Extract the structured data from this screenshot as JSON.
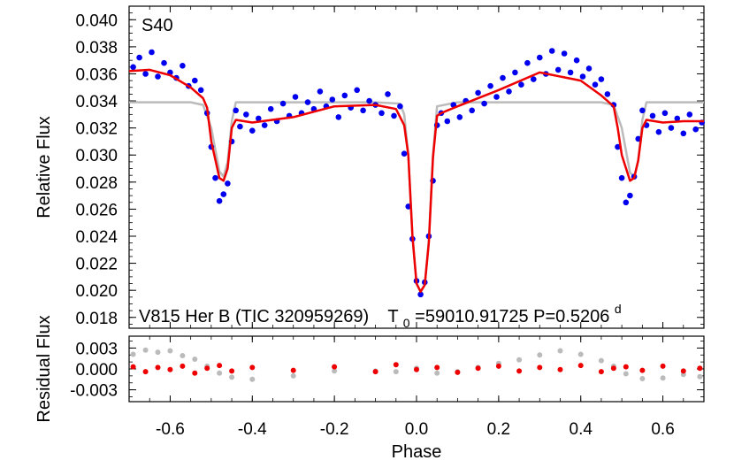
{
  "chart_data": [
    {
      "type": "scatter",
      "panel": "main",
      "title": "",
      "xlabel": "",
      "ylabel": "Relative Flux",
      "xlim": [
        -0.7,
        0.7
      ],
      "ylim": [
        0.0172,
        0.041
      ],
      "x_ticks": [
        -0.6,
        -0.4,
        -0.2,
        0.0,
        0.2,
        0.4,
        0.6
      ],
      "y_ticks": [
        0.018,
        0.02,
        0.022,
        0.024,
        0.026,
        0.028,
        0.03,
        0.032,
        0.034,
        0.036,
        0.038,
        0.04
      ],
      "y_tick_labels": [
        "0.018",
        "0.020",
        "0.022",
        "0.024",
        "0.026",
        "0.028",
        "0.030",
        "0.032",
        "0.034",
        "0.036",
        "0.038",
        "0.040"
      ],
      "grid": false,
      "annotations": {
        "panel_label": "S40",
        "object": "V815 Her B (TIC 320959269)",
        "t0_prefix": "T",
        "t0_sub": "0",
        "t0_value": "=59010.91725 P=0.5206",
        "period_sup": "d"
      },
      "series": [
        {
          "kind": "observed-points",
          "color": "#0000ee",
          "x": [
            -0.69,
            -0.675,
            -0.66,
            -0.645,
            -0.63,
            -0.615,
            -0.6,
            -0.585,
            -0.57,
            -0.555,
            -0.54,
            -0.525,
            -0.51,
            -0.5,
            -0.49,
            -0.48,
            -0.47,
            -0.46,
            -0.45,
            -0.44,
            -0.43,
            -0.415,
            -0.4,
            -0.385,
            -0.37,
            -0.355,
            -0.34,
            -0.325,
            -0.31,
            -0.295,
            -0.28,
            -0.265,
            -0.25,
            -0.235,
            -0.22,
            -0.205,
            -0.19,
            -0.175,
            -0.16,
            -0.145,
            -0.13,
            -0.115,
            -0.1,
            -0.085,
            -0.07,
            -0.055,
            -0.04,
            -0.03,
            -0.02,
            -0.01,
            0.0,
            0.01,
            0.02,
            0.03,
            0.04,
            0.05,
            0.06,
            0.075,
            0.09,
            0.105,
            0.12,
            0.135,
            0.15,
            0.165,
            0.18,
            0.195,
            0.21,
            0.225,
            0.24,
            0.255,
            0.27,
            0.285,
            0.3,
            0.315,
            0.33,
            0.345,
            0.36,
            0.375,
            0.39,
            0.405,
            0.42,
            0.435,
            0.45,
            0.465,
            0.48,
            0.49,
            0.5,
            0.51,
            0.52,
            0.53,
            0.54,
            0.55,
            0.56,
            0.575,
            0.59,
            0.605,
            0.62,
            0.635,
            0.65,
            0.665,
            0.68,
            0.695
          ],
          "y": [
            0.0365,
            0.0372,
            0.036,
            0.0376,
            0.0358,
            0.0368,
            0.0361,
            0.0357,
            0.0366,
            0.0351,
            0.0355,
            0.0348,
            0.0331,
            0.0306,
            0.0283,
            0.0266,
            0.0271,
            0.0279,
            0.031,
            0.0333,
            0.0321,
            0.033,
            0.0318,
            0.0327,
            0.0322,
            0.0334,
            0.0325,
            0.0338,
            0.0329,
            0.0343,
            0.0331,
            0.0339,
            0.0334,
            0.0347,
            0.0336,
            0.0341,
            0.0328,
            0.0344,
            0.0335,
            0.0348,
            0.0333,
            0.034,
            0.0337,
            0.0331,
            0.0345,
            0.0329,
            0.0336,
            0.0301,
            0.0262,
            0.0238,
            0.0207,
            0.0197,
            0.0206,
            0.024,
            0.0281,
            0.0322,
            0.0331,
            0.0325,
            0.0337,
            0.0328,
            0.034,
            0.0333,
            0.0346,
            0.0338,
            0.0351,
            0.0343,
            0.0357,
            0.0347,
            0.0361,
            0.0352,
            0.0368,
            0.0356,
            0.0372,
            0.036,
            0.0377,
            0.0363,
            0.0375,
            0.0361,
            0.037,
            0.0358,
            0.0364,
            0.0352,
            0.0356,
            0.0345,
            0.0337,
            0.0306,
            0.0283,
            0.0265,
            0.027,
            0.0284,
            0.0312,
            0.0333,
            0.0322,
            0.0329,
            0.0317,
            0.0331,
            0.032,
            0.0327,
            0.0316,
            0.033,
            0.0319,
            0.0324
          ]
        },
        {
          "kind": "fit-model",
          "color": "#ee0000",
          "x": [
            -0.7,
            -0.65,
            -0.6,
            -0.55,
            -0.52,
            -0.51,
            -0.5,
            -0.48,
            -0.47,
            -0.46,
            -0.45,
            -0.44,
            -0.4,
            -0.3,
            -0.2,
            -0.1,
            -0.05,
            -0.03,
            -0.02,
            -0.01,
            0.0,
            0.01,
            0.02,
            0.03,
            0.04,
            0.05,
            0.06,
            0.1,
            0.2,
            0.3,
            0.4,
            0.45,
            0.48,
            0.49,
            0.5,
            0.52,
            0.53,
            0.54,
            0.55,
            0.56,
            0.6,
            0.65,
            0.7
          ],
          "y": [
            0.0362,
            0.0363,
            0.0359,
            0.035,
            0.0342,
            0.0335,
            0.031,
            0.0283,
            0.0281,
            0.029,
            0.032,
            0.0326,
            0.0324,
            0.0328,
            0.0336,
            0.0337,
            0.0334,
            0.0322,
            0.03,
            0.024,
            0.0205,
            0.0199,
            0.0204,
            0.0235,
            0.0298,
            0.0329,
            0.0331,
            0.0336,
            0.0348,
            0.0361,
            0.0355,
            0.0344,
            0.0336,
            0.032,
            0.03,
            0.0281,
            0.0283,
            0.0296,
            0.032,
            0.0326,
            0.0324,
            0.0325,
            0.0325
          ]
        },
        {
          "kind": "model",
          "color": "#bbbbbb",
          "x": [
            -0.7,
            -0.55,
            -0.52,
            -0.5,
            -0.48,
            -0.47,
            -0.46,
            -0.45,
            -0.44,
            -0.3,
            -0.1,
            -0.04,
            -0.03,
            -0.02,
            -0.01,
            0.0,
            0.01,
            0.02,
            0.03,
            0.04,
            0.05,
            0.1,
            0.3,
            0.45,
            0.48,
            0.5,
            0.52,
            0.53,
            0.54,
            0.55,
            0.56,
            0.7
          ],
          "y": [
            0.0339,
            0.0339,
            0.0337,
            0.032,
            0.0288,
            0.0284,
            0.0295,
            0.0325,
            0.0339,
            0.0339,
            0.0339,
            0.0338,
            0.033,
            0.03,
            0.024,
            0.0205,
            0.0199,
            0.0204,
            0.0237,
            0.03,
            0.0336,
            0.0339,
            0.0339,
            0.0339,
            0.0337,
            0.032,
            0.0287,
            0.0284,
            0.0296,
            0.0326,
            0.0339,
            0.0339
          ]
        }
      ]
    },
    {
      "type": "scatter",
      "panel": "residual",
      "title": "",
      "xlabel": "Phase",
      "ylabel": "Residual Flux",
      "xlim": [
        -0.7,
        0.7
      ],
      "ylim": [
        -0.0047,
        0.0047
      ],
      "x_ticks": [
        -0.6,
        -0.4,
        -0.2,
        0.0,
        0.2,
        0.4,
        0.6
      ],
      "x_tick_labels": [
        "-0.6",
        "-0.4",
        "-0.2",
        "0.0",
        "0.2",
        "0.4",
        "0.6"
      ],
      "y_ticks": [
        0.003,
        0.0,
        -0.003
      ],
      "y_tick_labels": [
        "0.003",
        "0.000",
        "-0.003"
      ],
      "grid": false,
      "series": [
        {
          "kind": "residual-model",
          "color": "#bbbbbb",
          "x": [
            -0.69,
            -0.66,
            -0.63,
            -0.6,
            -0.57,
            -0.54,
            -0.51,
            -0.48,
            -0.45,
            -0.4,
            -0.3,
            -0.2,
            -0.1,
            -0.05,
            0.0,
            0.05,
            0.1,
            0.15,
            0.2,
            0.25,
            0.3,
            0.35,
            0.4,
            0.45,
            0.48,
            0.51,
            0.55,
            0.6,
            0.65,
            0.69
          ],
          "y": [
            0.0021,
            0.0027,
            0.0024,
            0.0026,
            0.0019,
            0.0014,
            0.0004,
            -0.0006,
            -0.0012,
            -0.0015,
            -0.001,
            -0.0003,
            -0.0003,
            -0.0004,
            0.0001,
            -0.0006,
            -0.0004,
            0.0002,
            0.0008,
            0.0013,
            0.002,
            0.0026,
            0.0021,
            0.0012,
            0.0004,
            -0.0007,
            -0.0014,
            -0.0013,
            -0.0008,
            -0.0011
          ]
        },
        {
          "kind": "residual-fit",
          "color": "#ee0000",
          "x": [
            -0.69,
            -0.66,
            -0.63,
            -0.6,
            -0.57,
            -0.54,
            -0.51,
            -0.48,
            -0.45,
            -0.4,
            -0.3,
            -0.2,
            -0.1,
            -0.05,
            0.0,
            0.05,
            0.1,
            0.15,
            0.2,
            0.25,
            0.3,
            0.35,
            0.4,
            0.45,
            0.48,
            0.51,
            0.55,
            0.6,
            0.65,
            0.69
          ],
          "y": [
            0.0003,
            -0.0004,
            0.0002,
            -0.0001,
            0.0004,
            -0.0006,
            0.0001,
            0.0005,
            -0.0003,
            0.0002,
            -0.0002,
            0.0003,
            -0.0004,
            0.0006,
            -0.0001,
            0.0002,
            -0.0005,
            0.0001,
            0.0004,
            -0.0003,
            0.0002,
            -0.0001,
            0.0005,
            -0.0004,
            0.0001,
            0.0003,
            -0.0002,
            0.0004,
            -0.0003,
            0.0001
          ]
        }
      ]
    }
  ]
}
